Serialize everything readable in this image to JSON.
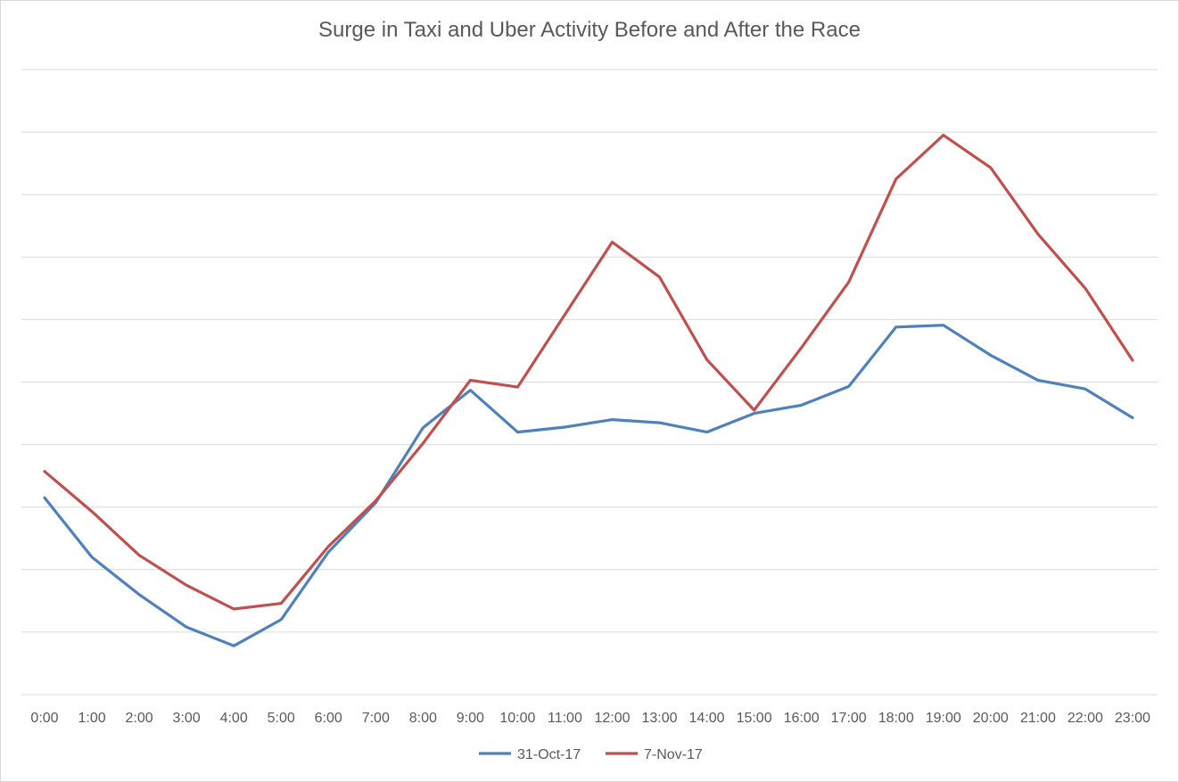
{
  "chart_data": {
    "type": "line",
    "title": "Surge in Taxi and Uber Activity Before and After the Race",
    "xlabel": "",
    "ylabel": "",
    "categories": [
      "0:00",
      "1:00",
      "2:00",
      "3:00",
      "4:00",
      "5:00",
      "6:00",
      "7:00",
      "8:00",
      "9:00",
      "10:00",
      "11:00",
      "12:00",
      "13:00",
      "14:00",
      "15:00",
      "16:00",
      "17:00",
      "18:00",
      "19:00",
      "20:00",
      "21:00",
      "22:00",
      "23:00"
    ],
    "ylim": [
      0,
      10
    ],
    "y_tick_labels_visible": false,
    "grid": true,
    "legend": "bottom",
    "series": [
      {
        "name": "31-Oct-17",
        "color": "#4f81bd",
        "values": [
          3.15,
          2.2,
          1.6,
          1.08,
          0.78,
          1.2,
          2.28,
          3.07,
          4.27,
          4.87,
          4.2,
          4.28,
          4.4,
          4.35,
          4.2,
          4.5,
          4.63,
          4.93,
          5.88,
          5.91,
          5.43,
          5.03,
          4.89,
          4.43
        ]
      },
      {
        "name": "7-Nov-17",
        "color": "#c0504d",
        "values": [
          3.57,
          2.93,
          2.23,
          1.75,
          1.37,
          1.46,
          2.37,
          3.1,
          4.02,
          5.03,
          4.92,
          6.08,
          7.24,
          6.68,
          5.36,
          4.55,
          5.55,
          6.6,
          8.25,
          8.95,
          8.43,
          7.37,
          6.5,
          5.35
        ]
      }
    ]
  }
}
